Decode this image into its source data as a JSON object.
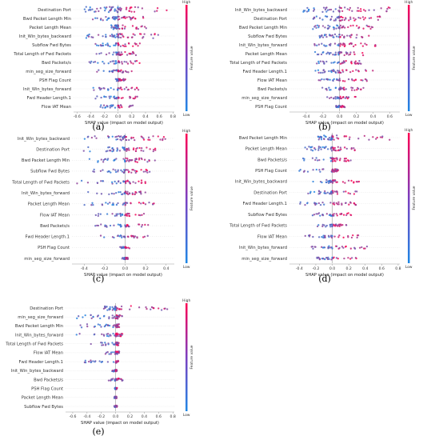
{
  "colors": {
    "low": "#1e88e5",
    "high": "#ff0052",
    "axis": "#999999",
    "zero_line": "#999999"
  },
  "chart_data": [
    {
      "type": "scatter",
      "panel_label": "(a)",
      "xlabel": "SHAP value (impact on model output)",
      "colorbar_label": "Feature value",
      "colorbar_high": "High",
      "colorbar_low": "Low",
      "xlim": [
        -0.65,
        0.82
      ],
      "xticks": [
        "-0.6",
        "-0.4",
        "-0.2",
        "0.0",
        "0.2",
        "0.4",
        "0.6",
        "0.8"
      ],
      "features": [
        {
          "name": "Destination Port",
          "min": -0.5,
          "max": 0.72,
          "spread": 2.4
        },
        {
          "name": "Bwd Packet Length Min",
          "min": -0.42,
          "max": 0.4,
          "spread": 1.6
        },
        {
          "name": "Packet Length Mean",
          "min": -0.1,
          "max": 0.42,
          "spread": 1.6
        },
        {
          "name": "Init_Win_bytes_backward",
          "min": -0.48,
          "max": 0.6,
          "spread": 2.0
        },
        {
          "name": "Subflow Fwd Bytes",
          "min": -0.35,
          "max": 0.35,
          "spread": 1.2
        },
        {
          "name": "Total Length of Fwd Packets",
          "min": -0.35,
          "max": 0.35,
          "spread": 1.2
        },
        {
          "name": "Bwd Packets/s",
          "min": -0.45,
          "max": 0.35,
          "spread": 1.0
        },
        {
          "name": "min_seg_size_forward",
          "min": -0.35,
          "max": 0.22,
          "spread": 0.9
        },
        {
          "name": "PSH Flag Count",
          "min": -0.05,
          "max": 0.12,
          "spread": 0.6
        },
        {
          "name": "Init_Win_bytes_forward",
          "min": -0.4,
          "max": 0.3,
          "spread": 1.0
        },
        {
          "name": "Fwd Header Length.1",
          "min": -0.35,
          "max": 0.3,
          "spread": 0.9
        },
        {
          "name": "Flow IAT Mean",
          "min": -0.35,
          "max": 0.28,
          "spread": 0.9
        }
      ]
    },
    {
      "type": "scatter",
      "panel_label": "(b)",
      "xlabel": "SHAP value (impact on model output)",
      "colorbar_label": "Feature value",
      "colorbar_high": "High",
      "colorbar_low": "Low",
      "xlim": [
        -0.6,
        0.72
      ],
      "xticks": [
        "-0.4",
        "-0.2",
        "0.0",
        "0.2",
        "0.4",
        "0.6"
      ],
      "features": [
        {
          "name": "Init_Win_bytes_backward",
          "min": -0.45,
          "max": 0.6,
          "spread": 2.0
        },
        {
          "name": "Destination Port",
          "min": -0.35,
          "max": 0.5,
          "spread": 2.0
        },
        {
          "name": "Bwd Packet Length Min",
          "min": -0.35,
          "max": 0.4,
          "spread": 1.6
        },
        {
          "name": "Subflow Fwd Bytes",
          "min": -0.3,
          "max": 0.35,
          "spread": 1.4
        },
        {
          "name": "Init_Win_bytes_forward",
          "min": -0.35,
          "max": 0.45,
          "spread": 1.2
        },
        {
          "name": "Packet Length Mean",
          "min": -0.3,
          "max": 0.4,
          "spread": 1.2
        },
        {
          "name": "Total Length of Fwd Packets",
          "min": -0.3,
          "max": 0.35,
          "spread": 1.1
        },
        {
          "name": "Fwd Header Length.1",
          "min": -0.3,
          "max": 0.4,
          "spread": 1.1
        },
        {
          "name": "Flow IAT Mean",
          "min": -0.25,
          "max": 0.35,
          "spread": 0.9
        },
        {
          "name": "Bwd Packets/s",
          "min": -0.25,
          "max": 0.3,
          "spread": 0.9
        },
        {
          "name": "min_seg_size_forward",
          "min": -0.15,
          "max": 0.25,
          "spread": 0.6
        },
        {
          "name": "PSH Flag Count",
          "min": -0.05,
          "max": 0.1,
          "spread": 0.5
        }
      ]
    },
    {
      "type": "scatter",
      "panel_label": "(c)",
      "xlabel": "SHAP value (impact on model output)",
      "colorbar_label": "Feature value",
      "colorbar_high": "High",
      "colorbar_low": "Low",
      "xlim": [
        -0.52,
        0.48
      ],
      "xticks": [
        "-0.4",
        "-0.2",
        "0.0",
        "0.2",
        "0.4"
      ],
      "features": [
        {
          "name": "Init_Win_bytes_backward",
          "min": -0.4,
          "max": 0.42,
          "spread": 2.0
        },
        {
          "name": "Destination Port",
          "min": -0.42,
          "max": 0.3,
          "spread": 1.8
        },
        {
          "name": "Bwd Packet Length Min",
          "min": -0.35,
          "max": 0.3,
          "spread": 1.6
        },
        {
          "name": "Subflow Fwd Bytes",
          "min": -0.35,
          "max": 0.3,
          "spread": 1.4
        },
        {
          "name": "Total Length of Fwd Packets",
          "min": -0.5,
          "max": 0.2,
          "spread": 1.2
        },
        {
          "name": "Init_Win_bytes_forward",
          "min": -0.45,
          "max": 0.2,
          "spread": 1.1
        },
        {
          "name": "Packet Length Mean",
          "min": -0.4,
          "max": 0.3,
          "spread": 1.0
        },
        {
          "name": "Flow IAT Mean",
          "min": -0.3,
          "max": 0.2,
          "spread": 0.8
        },
        {
          "name": "Bwd Packets/s",
          "min": -0.3,
          "max": 0.25,
          "spread": 0.8
        },
        {
          "name": "Fwd Header Length.1",
          "min": -0.25,
          "max": 0.25,
          "spread": 0.7
        },
        {
          "name": "PSH Flag Count",
          "min": -0.05,
          "max": 0.05,
          "spread": 0.3
        },
        {
          "name": "min_seg_size_forward",
          "min": -0.03,
          "max": 0.03,
          "spread": 0.3
        }
      ]
    },
    {
      "type": "scatter",
      "panel_label": "(d)",
      "xlabel": "SHAP value (impact on model output)",
      "colorbar_label": "Feature value",
      "colorbar_high": "High",
      "colorbar_low": "Low",
      "xlim": [
        -0.52,
        0.82
      ],
      "xticks": [
        "-0.4",
        "-0.2",
        "0.0",
        "0.2",
        "0.4",
        "0.6",
        "0.8"
      ],
      "features": [
        {
          "name": "Bwd Packet Length Min",
          "min": -0.2,
          "max": 0.72,
          "spread": 2.0
        },
        {
          "name": "Packet Length Mean",
          "min": -0.35,
          "max": 0.3,
          "spread": 1.8
        },
        {
          "name": "Bwd Packets/s",
          "min": -0.4,
          "max": 0.3,
          "spread": 1.4
        },
        {
          "name": "PSH Flag Count",
          "min": -0.4,
          "max": 0.1,
          "spread": 1.0
        },
        {
          "name": "Init_Win_bytes_backward",
          "min": -0.3,
          "max": 0.35,
          "spread": 1.2
        },
        {
          "name": "Destination Port",
          "min": -0.3,
          "max": 0.3,
          "spread": 1.2
        },
        {
          "name": "Fwd Header Length.1",
          "min": -0.4,
          "max": 0.3,
          "spread": 1.0
        },
        {
          "name": "Subflow Fwd Bytes",
          "min": -0.25,
          "max": 0.25,
          "spread": 0.9
        },
        {
          "name": "Total Length of Fwd Packets",
          "min": -0.2,
          "max": 0.2,
          "spread": 0.8
        },
        {
          "name": "Flow IAT Mean",
          "min": -0.35,
          "max": 0.35,
          "spread": 0.8
        },
        {
          "name": "Init_Win_bytes_forward",
          "min": -0.3,
          "max": 0.5,
          "spread": 0.9
        },
        {
          "name": "min_seg_size_forward",
          "min": -0.2,
          "max": 0.3,
          "spread": 0.6
        }
      ]
    },
    {
      "type": "scatter",
      "panel_label": "(e)",
      "xlabel": "SHAP value (impact on model output)",
      "colorbar_label": "Feature value",
      "colorbar_high": "High",
      "colorbar_low": "Low",
      "xlim": [
        -0.7,
        0.82
      ],
      "xticks": [
        "-0.6",
        "-0.4",
        "-0.2",
        "0.0",
        "0.2",
        "0.4",
        "0.6",
        "0.8"
      ],
      "features": [
        {
          "name": "Destination Port",
          "min": -0.2,
          "max": 0.75,
          "spread": 1.8
        },
        {
          "name": "min_seg_size_forward",
          "min": -0.55,
          "max": 0.1,
          "spread": 1.4
        },
        {
          "name": "Bwd Packet Length Min",
          "min": -0.5,
          "max": 0.05,
          "spread": 1.2
        },
        {
          "name": "Init_Win_bytes_forward",
          "min": -0.55,
          "max": 0.1,
          "spread": 1.1
        },
        {
          "name": "Total Length of Fwd Packets",
          "min": -0.35,
          "max": 0.05,
          "spread": 1.0
        },
        {
          "name": "Flow IAT Mean",
          "min": -0.3,
          "max": 0.05,
          "spread": 0.9
        },
        {
          "name": "Fwd Header Length.1",
          "min": -0.45,
          "max": 0.05,
          "spread": 0.8
        },
        {
          "name": "Init_Win_bytes_backward",
          "min": -0.05,
          "max": 0.02,
          "spread": 0.4
        },
        {
          "name": "Bwd Packets/s",
          "min": -0.1,
          "max": 0.1,
          "spread": 0.6
        },
        {
          "name": "PSH Flag Count",
          "min": -0.02,
          "max": 0.02,
          "spread": 0.3
        },
        {
          "name": "Packet Length Mean",
          "min": -0.02,
          "max": 0.02,
          "spread": 0.3
        },
        {
          "name": "Subflow Fwd Bytes",
          "min": -0.02,
          "max": 0.02,
          "spread": 0.3
        }
      ]
    }
  ]
}
